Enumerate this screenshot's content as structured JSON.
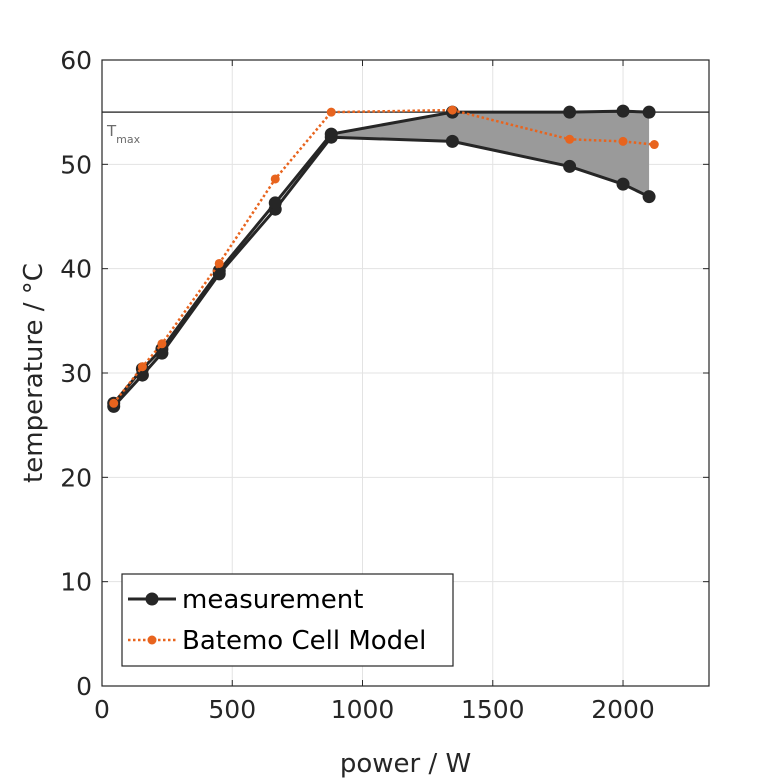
{
  "chart_data": {
    "type": "line",
    "xlabel": "power / W",
    "ylabel": "temperature / °C",
    "xlim": [
      0,
      2330
    ],
    "ylim": [
      0,
      60
    ],
    "xticks": [
      0,
      500,
      1000,
      1500,
      2000
    ],
    "yticks": [
      0,
      10,
      20,
      30,
      40,
      50,
      60
    ],
    "grid": true,
    "legend_position": "bottom-left",
    "reference_line": {
      "y": 55,
      "label_main": "T",
      "label_sub": "max",
      "color": "#404040"
    },
    "shaded_band": {
      "color": "#9a9a9a",
      "upper": {
        "x": [
          880,
          1345,
          1795,
          2000,
          2100
        ],
        "y": [
          52.9,
          55.0,
          55.0,
          55.1,
          55.0
        ]
      },
      "lower": {
        "x": [
          880,
          1345,
          1795,
          2000,
          2100
        ],
        "y": [
          52.6,
          52.2,
          49.8,
          48.1,
          46.9
        ]
      }
    },
    "series": [
      {
        "name": "measurement",
        "color": "#262626",
        "style": "solid",
        "marker": "circle",
        "lines": [
          {
            "x": [
              45,
              155,
              230,
              450,
              665,
              880,
              1345,
              1795,
              2000,
              2100
            ],
            "y": [
              26.8,
              29.8,
              31.9,
              39.5,
              45.7,
              52.6,
              52.2,
              49.8,
              48.1,
              46.9
            ]
          },
          {
            "x": [
              45,
              155,
              230,
              450,
              665,
              880,
              1345,
              1795,
              2000,
              2100
            ],
            "y": [
              27.1,
              30.4,
              32.3,
              39.8,
              46.3,
              52.9,
              55.0,
              55.0,
              55.1,
              55.0
            ]
          }
        ]
      },
      {
        "name": "Batemo Cell Model",
        "color": "#e8641e",
        "style": "dotted",
        "marker": "circle",
        "lines": [
          {
            "x": [
              45,
              155,
              230,
              450,
              665,
              880,
              1345,
              1795,
              2000,
              2120
            ],
            "y": [
              27.1,
              30.6,
              32.8,
              40.5,
              48.6,
              55.0,
              55.2,
              52.4,
              52.2,
              51.9
            ]
          }
        ]
      }
    ]
  }
}
